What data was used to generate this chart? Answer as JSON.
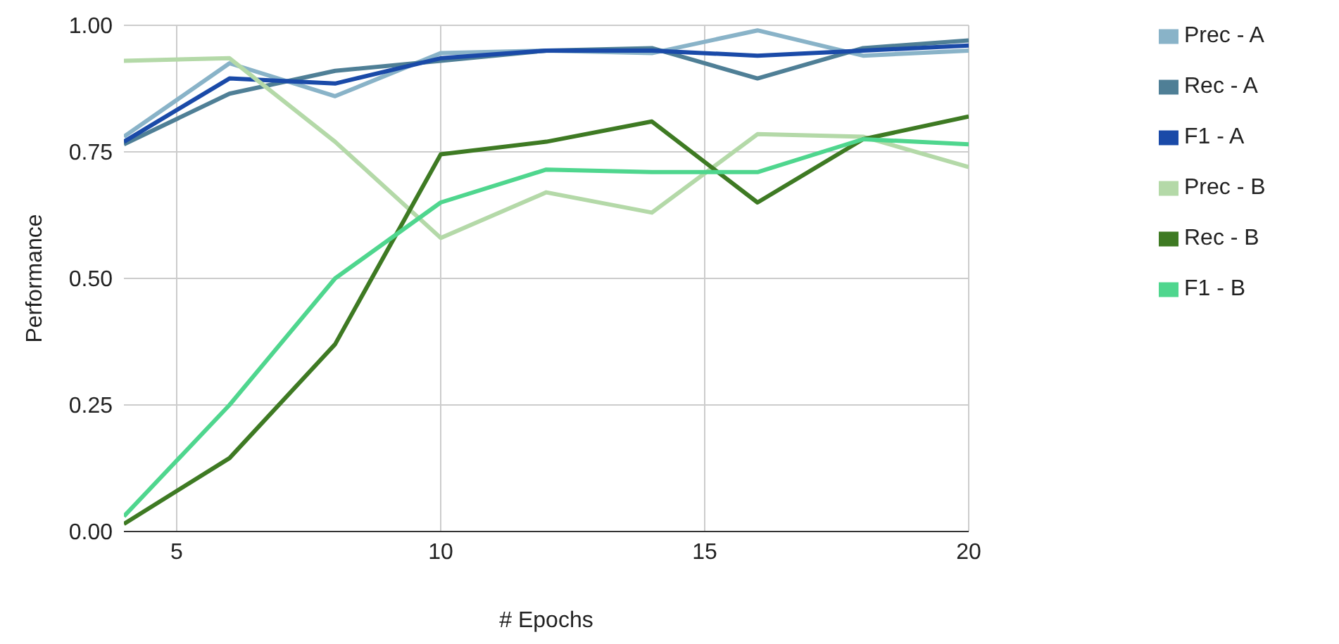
{
  "chart_data": {
    "type": "line",
    "xlabel": "# Epochs",
    "ylabel": "Performance",
    "x": [
      4,
      6,
      8,
      10,
      12,
      14,
      16,
      18,
      20
    ],
    "xlim": [
      4,
      20
    ],
    "xticks": [
      5,
      10,
      15,
      20
    ],
    "ylim": [
      0,
      1
    ],
    "yticks": [
      {
        "value": 0,
        "label": "0.00"
      },
      {
        "value": 0.25,
        "label": "0.25"
      },
      {
        "value": 0.5,
        "label": "0.50"
      },
      {
        "value": 0.75,
        "label": "0.75"
      },
      {
        "value": 1,
        "label": "1.00"
      }
    ],
    "grid": true,
    "legend": "top right",
    "marker": "none",
    "line_style": "solid",
    "series": [
      {
        "name": "Prec - A",
        "color": "#89b3c8",
        "values": [
          0.78,
          0.925,
          0.86,
          0.945,
          0.95,
          0.945,
          0.99,
          0.94,
          0.95
        ]
      },
      {
        "name": "Rec - A",
        "color": "#4f7f96",
        "values": [
          0.765,
          0.865,
          0.91,
          0.93,
          0.95,
          0.955,
          0.895,
          0.955,
          0.97
        ]
      },
      {
        "name": "F1 - A",
        "color": "#1a4aa8",
        "values": [
          0.77,
          0.895,
          0.885,
          0.935,
          0.95,
          0.95,
          0.94,
          0.95,
          0.96
        ]
      },
      {
        "name": "Prec - B",
        "color": "#b4d9a8",
        "values": [
          0.93,
          0.935,
          0.77,
          0.58,
          0.67,
          0.63,
          0.785,
          0.78,
          0.72
        ]
      },
      {
        "name": "Rec - B",
        "color": "#3e7a23",
        "values": [
          0.015,
          0.145,
          0.37,
          0.745,
          0.77,
          0.81,
          0.65,
          0.775,
          0.82
        ]
      },
      {
        "name": "F1 - B",
        "color": "#4fd68e",
        "values": [
          0.03,
          0.25,
          0.5,
          0.65,
          0.715,
          0.71,
          0.71,
          0.775,
          0.765
        ]
      }
    ]
  }
}
